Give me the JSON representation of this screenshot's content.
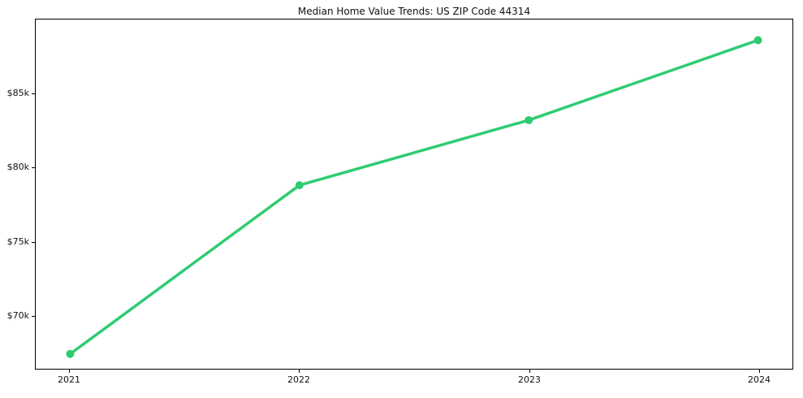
{
  "title": "Median Home Value Trends: US ZIP Code 44314",
  "chart_data": {
    "type": "line",
    "title": "Median Home Value Trends: US ZIP Code 44314",
    "xlabel": "",
    "ylabel": "",
    "x": [
      2021,
      2022,
      2023,
      2024
    ],
    "series": [
      {
        "name": "Median Home Value",
        "values": [
          67400,
          78800,
          83200,
          88600
        ]
      }
    ],
    "x_tick_labels": [
      "2021",
      "2022",
      "2023",
      "2024"
    ],
    "y_ticks": [
      {
        "value": 70000,
        "label": "$70k"
      },
      {
        "value": 75000,
        "label": "$75k"
      },
      {
        "value": 80000,
        "label": "$80k"
      },
      {
        "value": 85000,
        "label": "$85k"
      }
    ],
    "xlim": [
      2020.85,
      2024.15
    ],
    "ylim": [
      66400,
      90000
    ],
    "grid": false,
    "legend": "none",
    "line_color": "#2ecc71",
    "marker": "circle",
    "marker_radius": 5,
    "line_width": 3.5,
    "spine_color": "#000000",
    "text_color": "#111111"
  }
}
